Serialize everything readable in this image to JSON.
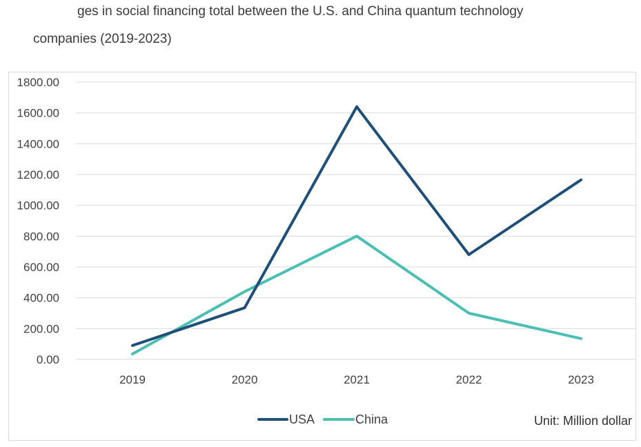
{
  "chart_data": {
    "type": "line",
    "title_line1": "ges in social financing total between the U.S. and China quantum technology",
    "title_line2": "companies (2019-2023)",
    "categories": [
      "2019",
      "2020",
      "2021",
      "2022",
      "2023"
    ],
    "series": [
      {
        "name": "USA",
        "color": "#1f4e79",
        "values": [
          90,
          335,
          1640,
          680,
          1165
        ]
      },
      {
        "name": "China",
        "color": "#4bbfb3",
        "values": [
          35,
          440,
          800,
          300,
          135
        ]
      }
    ],
    "ylim": [
      0,
      1800
    ],
    "yticks": [
      0,
      200,
      400,
      600,
      800,
      1000,
      1200,
      1400,
      1600,
      1800
    ],
    "ytick_labels": [
      "0.00",
      "200.00",
      "400.00",
      "600.00",
      "800.00",
      "1000.00",
      "1200.00",
      "1400.00",
      "1600.00",
      "1800.00"
    ],
    "unit_note": "Unit: Million dollar",
    "legend_position": "bottom-center",
    "grid": true
  }
}
